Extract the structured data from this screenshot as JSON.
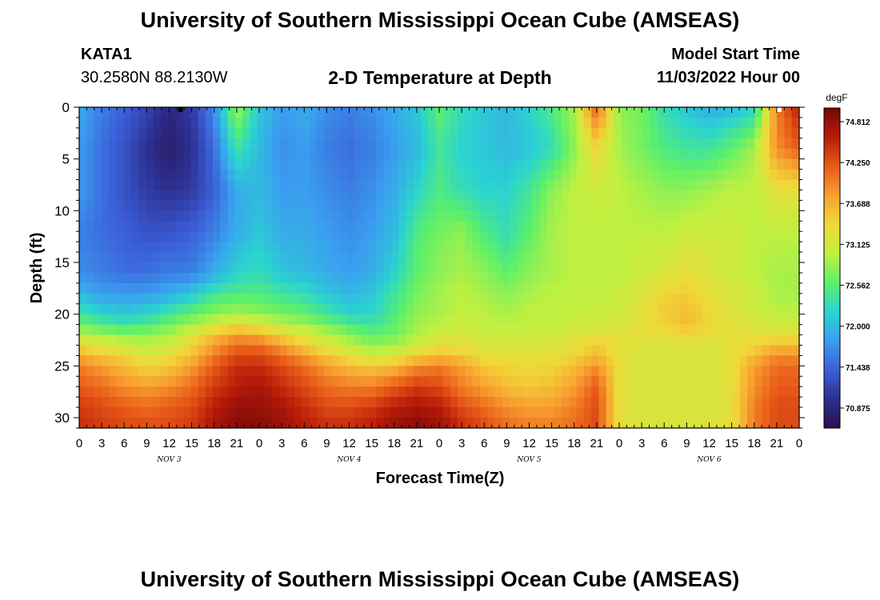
{
  "header": {
    "title": "University of Southern Mississippi Ocean Cube (AMSEAS)",
    "station_id": "KATA1",
    "station_coords": "30.2580N  88.2130W",
    "subtitle": "2-D Temperature at Depth",
    "model_label": "Model Start Time",
    "model_date": "11/03/2022 Hour 00"
  },
  "footer": {
    "title": "University of Southern Mississippi Ocean Cube (AMSEAS)"
  },
  "chart_data": {
    "type": "heatmap",
    "title": "2-D Temperature at Depth",
    "xlabel": "Forecast Time(Z)",
    "ylabel": "Depth (ft)",
    "x_range_hours": [
      0,
      96
    ],
    "y_range_ft": [
      0,
      31
    ],
    "x_tick_labels": [
      "0",
      "3",
      "6",
      "9",
      "12",
      "15",
      "18",
      "21",
      "0",
      "3",
      "6",
      "9",
      "12",
      "15",
      "18",
      "21",
      "0",
      "3",
      "6",
      "9",
      "12",
      "15",
      "18",
      "21",
      "0",
      "3",
      "6",
      "9",
      "12",
      "15",
      "18",
      "21",
      "0"
    ],
    "y_ticks": [
      0,
      5,
      10,
      15,
      20,
      25,
      30
    ],
    "y_tick_labels": [
      "0",
      "5",
      "10",
      "15",
      "20",
      "25",
      "30"
    ],
    "day_labels": [
      {
        "label": "NOV 3",
        "hour": 12
      },
      {
        "label": "NOV 4",
        "hour": 36
      },
      {
        "label": "NOV 5",
        "hour": 60
      },
      {
        "label": "NOV 6",
        "hour": 84
      }
    ],
    "colorbar": {
      "unit": "degF",
      "min": 70.6,
      "max": 75.0,
      "labels": [
        "74.812",
        "74.250",
        "73.688",
        "73.125",
        "72.562",
        "72.000",
        "71.438",
        "70.875"
      ],
      "label_values": [
        74.812,
        74.25,
        73.688,
        73.125,
        72.562,
        72.0,
        71.438,
        70.875
      ],
      "colors": [
        "#2a0e4a",
        "#2c2f8f",
        "#3b5fd8",
        "#3a9ef0",
        "#2ad4d0",
        "#5cf06a",
        "#c0f040",
        "#f0d838",
        "#f8a030",
        "#e85a18",
        "#b81c08",
        "#760608"
      ]
    },
    "grid_hours": [
      0,
      3,
      6,
      9,
      12,
      15,
      18,
      21,
      24,
      27,
      30,
      33,
      36,
      39,
      42,
      45,
      48,
      51,
      54,
      57,
      60,
      63,
      66,
      69,
      72,
      75,
      78,
      81,
      84,
      87,
      90,
      93,
      96
    ],
    "grid_depths_ft": [
      0,
      4,
      8,
      12,
      16,
      18,
      20,
      21,
      22,
      23,
      24,
      25,
      27,
      29,
      31
    ],
    "temperature_degF": [
      [
        71.9,
        71.6,
        71.4,
        71.2,
        70.9,
        71.1,
        71.7,
        72.9,
        72.1,
        71.8,
        71.9,
        71.7,
        71.6,
        71.7,
        71.9,
        72.1,
        72.6,
        72.3,
        72.1,
        72.0,
        72.2,
        72.5,
        72.9,
        74.2,
        72.8,
        72.7,
        72.3,
        72.1,
        71.9,
        72.0,
        72.2,
        74.0,
        74.6
      ],
      [
        71.8,
        71.5,
        71.3,
        71.0,
        70.8,
        71.0,
        71.5,
        72.4,
        72.0,
        71.7,
        71.8,
        71.6,
        71.5,
        71.6,
        71.8,
        72.0,
        72.4,
        72.2,
        72.1,
        72.0,
        72.1,
        72.3,
        72.8,
        73.4,
        72.9,
        72.7,
        72.5,
        72.4,
        72.4,
        72.6,
        72.9,
        73.9,
        74.2
      ],
      [
        71.8,
        71.5,
        71.3,
        71.1,
        71.0,
        71.1,
        71.4,
        71.9,
        72.0,
        71.8,
        71.8,
        71.7,
        71.6,
        71.7,
        71.9,
        72.2,
        72.5,
        72.3,
        72.2,
        72.2,
        72.4,
        72.8,
        73.0,
        73.1,
        73.0,
        72.9,
        72.8,
        72.8,
        72.9,
        73.0,
        73.0,
        73.3,
        73.3
      ],
      [
        71.6,
        71.5,
        71.4,
        71.3,
        71.3,
        71.4,
        71.6,
        71.9,
        72.1,
        71.9,
        71.9,
        71.8,
        71.7,
        71.8,
        72.0,
        72.5,
        72.7,
        72.8,
        72.5,
        72.3,
        72.6,
        72.9,
        73.0,
        73.0,
        73.0,
        73.0,
        73.0,
        73.1,
        73.1,
        73.1,
        73.0,
        73.0,
        73.0
      ],
      [
        71.7,
        71.6,
        71.5,
        71.5,
        71.6,
        71.6,
        71.9,
        72.2,
        72.3,
        72.1,
        72.0,
        71.9,
        71.8,
        71.9,
        72.2,
        72.6,
        72.8,
        72.9,
        72.8,
        72.6,
        72.8,
        72.9,
        73.0,
        73.0,
        73.0,
        73.1,
        73.2,
        73.3,
        73.2,
        73.1,
        73.0,
        72.9,
        72.9
      ],
      [
        72.0,
        71.8,
        71.8,
        71.8,
        71.9,
        72.1,
        72.4,
        72.5,
        72.5,
        72.4,
        72.3,
        72.1,
        72.0,
        72.1,
        72.4,
        72.7,
        72.9,
        73.0,
        72.9,
        72.8,
        72.9,
        73.0,
        73.0,
        73.0,
        73.1,
        73.2,
        73.4,
        73.5,
        73.3,
        73.2,
        73.1,
        72.9,
        72.9
      ],
      [
        72.4,
        72.2,
        72.1,
        72.2,
        72.4,
        72.6,
        72.8,
        72.9,
        72.8,
        72.7,
        72.6,
        72.4,
        72.2,
        72.2,
        72.5,
        72.8,
        72.9,
        73.0,
        73.0,
        72.9,
        73.0,
        73.0,
        73.0,
        73.1,
        73.1,
        73.3,
        73.5,
        73.6,
        73.4,
        73.2,
        73.1,
        73.0,
        73.0
      ],
      [
        72.7,
        72.5,
        72.4,
        72.5,
        72.7,
        72.9,
        73.1,
        73.3,
        73.2,
        73.0,
        72.9,
        72.7,
        72.5,
        72.4,
        72.6,
        72.9,
        73.0,
        73.1,
        73.0,
        73.0,
        73.0,
        73.0,
        73.1,
        73.1,
        73.2,
        73.3,
        73.4,
        73.6,
        73.4,
        73.3,
        73.2,
        73.1,
        73.1
      ],
      [
        73.0,
        72.9,
        72.8,
        72.8,
        72.9,
        73.2,
        73.6,
        73.8,
        73.7,
        73.4,
        73.2,
        73.0,
        72.8,
        72.6,
        72.7,
        72.9,
        73.1,
        73.2,
        73.1,
        73.1,
        73.1,
        73.1,
        73.2,
        73.3,
        73.3,
        73.3,
        73.3,
        73.4,
        73.3,
        73.3,
        73.3,
        73.3,
        73.3
      ],
      [
        73.4,
        73.2,
        73.1,
        73.0,
        73.1,
        73.4,
        73.8,
        74.1,
        74.1,
        73.8,
        73.5,
        73.2,
        73.0,
        72.8,
        72.9,
        73.1,
        73.3,
        73.3,
        73.2,
        73.2,
        73.2,
        73.2,
        73.3,
        73.5,
        73.3,
        73.2,
        73.2,
        73.2,
        73.2,
        73.3,
        73.4,
        73.6,
        73.6
      ],
      [
        73.7,
        73.5,
        73.4,
        73.2,
        73.3,
        73.6,
        74.0,
        74.3,
        74.3,
        74.1,
        73.8,
        73.5,
        73.3,
        73.1,
        73.2,
        73.4,
        73.6,
        73.5,
        73.3,
        73.3,
        73.3,
        73.3,
        73.4,
        73.6,
        73.3,
        73.2,
        73.2,
        73.2,
        73.2,
        73.3,
        73.6,
        73.9,
        73.9
      ],
      [
        74.0,
        73.8,
        73.6,
        73.4,
        73.5,
        73.8,
        74.2,
        74.5,
        74.5,
        74.3,
        74.1,
        73.8,
        73.6,
        73.5,
        73.6,
        73.9,
        74.0,
        73.8,
        73.5,
        73.4,
        73.4,
        73.4,
        73.6,
        73.9,
        73.3,
        73.2,
        73.2,
        73.2,
        73.2,
        73.3,
        73.8,
        74.1,
        74.1
      ],
      [
        74.2,
        74.1,
        73.9,
        73.8,
        73.9,
        74.1,
        74.4,
        74.6,
        74.7,
        74.5,
        74.3,
        74.1,
        74.0,
        74.0,
        74.2,
        74.4,
        74.3,
        74.0,
        73.8,
        73.6,
        73.5,
        73.6,
        73.8,
        74.2,
        73.3,
        73.2,
        73.2,
        73.2,
        73.2,
        73.3,
        73.9,
        74.2,
        74.2
      ],
      [
        74.4,
        74.3,
        74.2,
        74.1,
        74.2,
        74.3,
        74.6,
        74.8,
        74.8,
        74.7,
        74.5,
        74.3,
        74.3,
        74.4,
        74.6,
        74.7,
        74.6,
        74.3,
        74.1,
        73.9,
        73.8,
        73.8,
        74.0,
        74.3,
        73.3,
        73.2,
        73.2,
        73.2,
        73.2,
        73.3,
        74.0,
        74.3,
        74.3
      ],
      [
        74.5,
        74.4,
        74.3,
        74.3,
        74.3,
        74.4,
        74.7,
        74.9,
        74.9,
        74.8,
        74.6,
        74.5,
        74.5,
        74.6,
        74.8,
        74.9,
        74.8,
        74.5,
        74.3,
        74.1,
        74.0,
        74.0,
        74.1,
        74.3,
        73.3,
        73.2,
        73.2,
        73.2,
        73.2,
        73.3,
        74.0,
        74.3,
        74.3
      ]
    ]
  }
}
